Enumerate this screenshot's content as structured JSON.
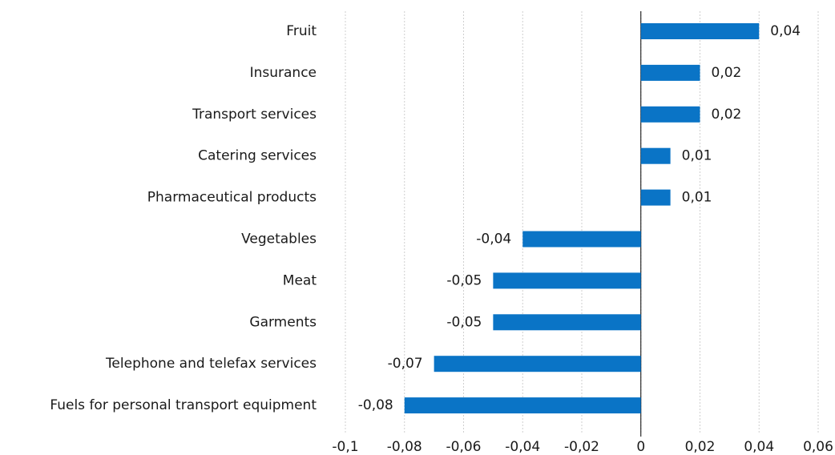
{
  "chart_data": {
    "type": "hbar",
    "categories": [
      "Fruit",
      "Insurance",
      "Transport services",
      "Catering services",
      "Pharmaceutical products",
      "Vegetables",
      "Meat",
      "Garments",
      "Telephone and telefax services",
      "Fuels for personal transport equipment"
    ],
    "values": [
      0.04,
      0.02,
      0.02,
      0.01,
      0.01,
      -0.04,
      -0.05,
      -0.05,
      -0.07,
      -0.08
    ],
    "value_labels": [
      "0,04",
      "0,02",
      "0,02",
      "0,01",
      "0,01",
      "-0,04",
      "-0,05",
      "-0,05",
      "-0,07",
      "-0,08"
    ],
    "color": "#0a74c6",
    "xlim": [
      -0.1,
      0.06
    ],
    "xticks": [
      {
        "value": -0.1,
        "label": "-0,1"
      },
      {
        "value": -0.08,
        "label": "-0,08"
      },
      {
        "value": -0.06,
        "label": "-0,06"
      },
      {
        "value": -0.04,
        "label": "-0,04"
      },
      {
        "value": -0.02,
        "label": "-0,02"
      },
      0,
      {
        "value": 0.02,
        "label": "0,02"
      },
      {
        "value": 0.04,
        "label": "0,04"
      },
      {
        "value": 0.06,
        "label": "0,06"
      }
    ],
    "grid": true
  }
}
